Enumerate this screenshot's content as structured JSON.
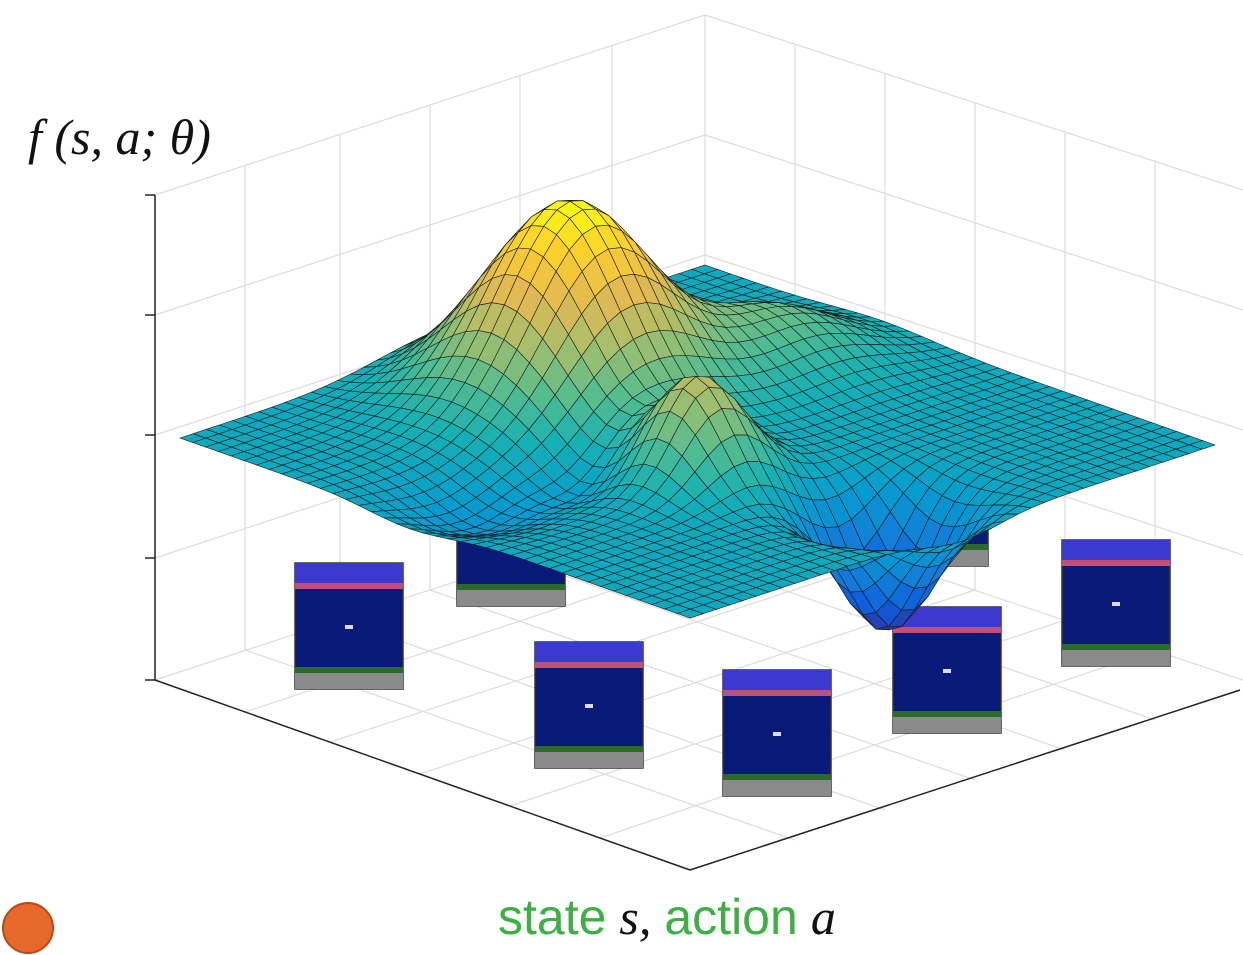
{
  "labels": {
    "z_axis": "f (s, a; θ)",
    "x_axis": [
      "state",
      "s,",
      "action",
      "a"
    ]
  }
}
